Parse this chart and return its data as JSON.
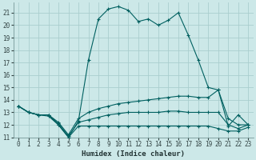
{
  "xlabel": "Humidex (Indice chaleur)",
  "bg_color": "#cce8e8",
  "grid_color": "#aacece",
  "line_color": "#006060",
  "xlim": [
    -0.5,
    23.5
  ],
  "ylim": [
    11,
    21.8
  ],
  "yticks": [
    11,
    12,
    13,
    14,
    15,
    16,
    17,
    18,
    19,
    20,
    21
  ],
  "xticks": [
    0,
    1,
    2,
    3,
    4,
    5,
    6,
    7,
    8,
    9,
    10,
    11,
    12,
    13,
    14,
    15,
    16,
    17,
    18,
    19,
    20,
    21,
    22,
    23
  ],
  "series": {
    "main": [
      13.5,
      13.0,
      12.8,
      12.8,
      12.0,
      11.0,
      12.3,
      17.2,
      20.5,
      21.3,
      21.5,
      21.2,
      20.3,
      20.5,
      20.0,
      20.4,
      21.0,
      19.2,
      17.2,
      15.0,
      14.8,
      11.9,
      12.8,
      12.0
    ],
    "min": [
      13.5,
      13.0,
      12.8,
      12.7,
      12.0,
      11.0,
      11.9,
      11.9,
      11.9,
      11.9,
      11.9,
      11.9,
      11.9,
      11.9,
      11.9,
      11.9,
      11.9,
      11.9,
      11.9,
      11.9,
      11.7,
      11.5,
      11.5,
      11.8
    ],
    "max": [
      13.5,
      13.0,
      12.8,
      12.8,
      12.2,
      11.2,
      12.5,
      13.0,
      13.3,
      13.5,
      13.7,
      13.8,
      13.9,
      14.0,
      14.1,
      14.2,
      14.3,
      14.3,
      14.2,
      14.2,
      14.8,
      12.5,
      12.0,
      12.0
    ],
    "avg": [
      13.5,
      13.0,
      12.8,
      12.8,
      12.1,
      11.1,
      12.2,
      12.4,
      12.6,
      12.8,
      12.9,
      13.0,
      13.0,
      13.0,
      13.0,
      13.1,
      13.1,
      13.0,
      13.0,
      13.0,
      13.0,
      12.0,
      11.7,
      12.0
    ]
  },
  "lw": 0.8,
  "ms": 3.0,
  "tick_fontsize": 5.5,
  "xlabel_fontsize": 6.5
}
